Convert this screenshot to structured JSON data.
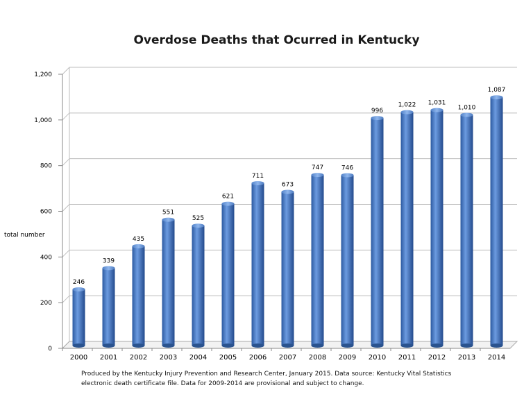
{
  "chart_data": {
    "type": "bar",
    "title": "Overdose Deaths that Ocurred in Kentucky",
    "ylabel": "total number",
    "xlabel": "",
    "categories": [
      "2000",
      "2001",
      "2002",
      "2003",
      "2004",
      "2005",
      "2006",
      "2007",
      "2008",
      "2009",
      "2010",
      "2011",
      "2012",
      "2013",
      "2014"
    ],
    "values": [
      246,
      339,
      435,
      551,
      525,
      621,
      711,
      673,
      747,
      746,
      996,
      1022,
      1031,
      1010,
      1087
    ],
    "value_labels": [
      "246",
      "339",
      "435",
      "551",
      "525",
      "621",
      "711",
      "673",
      "747",
      "746",
      "996",
      "1,022",
      "1,031",
      "1,010",
      "1,087"
    ],
    "ylim": [
      0,
      1200
    ],
    "yticks": [
      0,
      200,
      400,
      600,
      800,
      1000,
      1200
    ],
    "ytick_labels": [
      "0",
      "200",
      "400",
      "600",
      "800",
      "1,000",
      "1,200"
    ],
    "grid": true,
    "bar_color": "#4a7ec8",
    "legend": "none"
  },
  "footnote": {
    "line1": "Produced by the Kentucky Injury Prevention and Research Center, January 2015.  Data source:  Kentucky Vital Statistics",
    "line2": "electronic death certificate file.  Data for 2009-2014 are provisional and subject to change."
  }
}
